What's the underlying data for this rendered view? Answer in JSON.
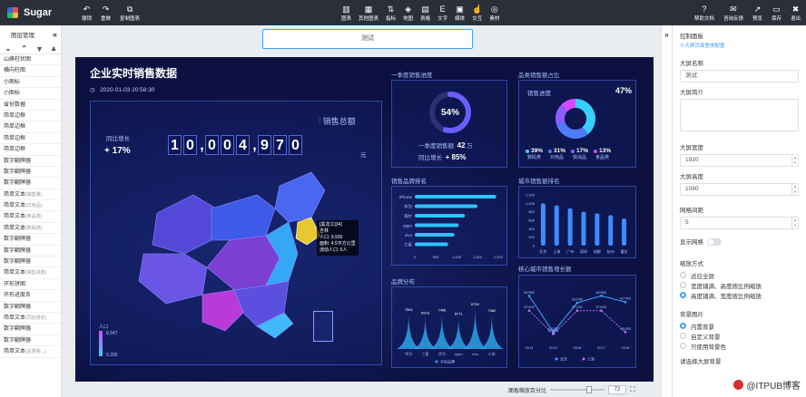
{
  "app": {
    "name": "Sugar"
  },
  "toolbar": {
    "left": [
      {
        "label": "撤销",
        "icon": "↶"
      },
      {
        "label": "重做",
        "icon": "↷"
      },
      {
        "label": "复制图表",
        "icon": "⧉"
      }
    ],
    "mid": [
      {
        "label": "图表",
        "icon": "▥"
      },
      {
        "label": "其他图表",
        "icon": "▦"
      },
      {
        "label": "指标",
        "icon": "⇅"
      },
      {
        "label": "地图",
        "icon": "◈"
      },
      {
        "label": "表格",
        "icon": "▤"
      },
      {
        "label": "文字",
        "icon": "E"
      },
      {
        "label": "媒体",
        "icon": "▣"
      },
      {
        "label": "交互",
        "icon": "☝"
      },
      {
        "label": "素材",
        "icon": "◎"
      }
    ],
    "right": [
      {
        "label": "帮助文档",
        "icon": "?"
      },
      {
        "label": "咨询反馈",
        "icon": "✉"
      },
      {
        "label": "预览",
        "icon": "↗"
      },
      {
        "label": "保存",
        "icon": "▭"
      },
      {
        "label": "退出",
        "icon": "✖"
      }
    ]
  },
  "layers": {
    "title": "图层管理",
    "items": [
      {
        "name": "山峰柱状图",
        "sub": ""
      },
      {
        "name": "横向柱图",
        "sub": ""
      },
      {
        "name": "小图标",
        "sub": ""
      },
      {
        "name": "小图标",
        "sub": ""
      },
      {
        "name": "省份数据",
        "sub": ""
      },
      {
        "name": "简单边框",
        "sub": ""
      },
      {
        "name": "简单边框",
        "sub": ""
      },
      {
        "name": "简单边框",
        "sub": ""
      },
      {
        "name": "简单边框",
        "sub": ""
      },
      {
        "name": "数字翻牌器",
        "sub": ""
      },
      {
        "name": "数字翻牌器",
        "sub": ""
      },
      {
        "name": "数字翻牌器",
        "sub": ""
      },
      {
        "name": "简单文本",
        "sub": "(销售量)"
      },
      {
        "name": "简单文本",
        "sub": "(日用品)"
      },
      {
        "name": "简单文本",
        "sub": "(食品类)"
      },
      {
        "name": "简单文本",
        "sub": "(数码类)"
      },
      {
        "name": "数字翻牌器",
        "sub": ""
      },
      {
        "name": "数字翻牌器",
        "sub": ""
      },
      {
        "name": "数字翻牌器",
        "sub": ""
      },
      {
        "name": "简单文本",
        "sub": "(销售进度)"
      },
      {
        "name": "环形饼图",
        "sub": ""
      },
      {
        "name": "环形进度条",
        "sub": ""
      },
      {
        "name": "数字翻牌器",
        "sub": ""
      },
      {
        "name": "简单文本",
        "sub": "(同比增长)"
      },
      {
        "name": "数字翻牌器",
        "sub": ""
      },
      {
        "name": "数字翻牌器",
        "sub": ""
      },
      {
        "name": "简单文本",
        "sub": "(品类销...)"
      }
    ]
  },
  "canvas": {
    "title_input": "测试",
    "footer_label": "面板缩放百分比",
    "zoom": "72"
  },
  "dashboard": {
    "title": "企业实时销售数据",
    "datetime": "2020-01-03 20:58:30",
    "yoy_label": "同比增长",
    "yoy_value": "+ 17%",
    "sales_total_label": "销售总额",
    "sales_total_digits": [
      "1",
      "0",
      ",",
      "0",
      "0",
      "4",
      ",",
      "9",
      "7",
      "0"
    ],
    "sales_total_unit": "元",
    "map_tooltip": [
      "[黑龙江]34]",
      "吉林",
      "人口: 9,926",
      "面积: 4.5平方公里",
      "流动人口: 6人"
    ],
    "map_legend_label": "人口",
    "map_legend_max": "8,947",
    "map_legend_min": "5,395",
    "q1": {
      "title": "一季度销售进度",
      "percent": 0.54,
      "percent_label": "54%",
      "sales_label": "一季度销售额",
      "sales_value": "42",
      "sales_unit": "万",
      "yoy_label": "同比增长",
      "yoy_value": "+ 85%"
    },
    "category_ratio": {
      "title": "品类销售额占比",
      "progress_label": "销售进度",
      "progress_value": "47%",
      "items": [
        {
          "pct": "39%",
          "name": "数码类",
          "color": "#36d0ff"
        },
        {
          "pct": "31%",
          "name": "日用品",
          "color": "#4f7bff"
        },
        {
          "pct": "17%",
          "name": "快消品",
          "color": "#8a5cff"
        },
        {
          "pct": "13%",
          "name": "食品类",
          "color": "#d04dff"
        }
      ]
    }
  },
  "chart_data": [
    {
      "type": "bar",
      "title": "销售品牌排名",
      "orientation": "horizontal",
      "categories": [
        "iPhone",
        "华为",
        "海尔",
        "oppo",
        "vivo",
        "三星"
      ],
      "values": [
        1950,
        1500,
        1200,
        1050,
        950,
        800
      ],
      "xlim": [
        0,
        2000
      ],
      "xticks": [
        "0",
        "500",
        "1,000",
        "1,500",
        "2,000"
      ]
    },
    {
      "type": "bar",
      "title": "城市销售额排名",
      "categories": [
        "北京",
        "上海",
        "广州",
        "深圳",
        "成都",
        "杭州",
        "重庆"
      ],
      "values": [
        1000,
        950,
        880,
        800,
        760,
        720,
        640
      ],
      "ylim": [
        0,
        1200
      ],
      "yticks": [
        "0",
        "200",
        "400",
        "600",
        "800",
        "1,000",
        "1,200"
      ]
    },
    {
      "type": "area",
      "title": "品牌分布",
      "categories": [
        "华为",
        "三星",
        "华为",
        "oppo",
        "vivo",
        "小米"
      ],
      "values": [
        7564,
        6916,
        7458,
        6771,
        8752,
        7382
      ],
      "legend": [
        "手机品牌"
      ]
    },
    {
      "type": "line",
      "title": "核心城市销售增长额",
      "x": [
        "2014",
        "2015",
        "2016",
        "2017",
        "2018"
      ],
      "series": [
        {
          "name": "北京",
          "values": [
            667882,
            431250,
            622789,
            667882,
            627469
          ]
        },
        {
          "name": "上海",
          "values": [
            571332,
            417882,
            571332,
            571332,
            431250
          ]
        }
      ]
    }
  ],
  "props": {
    "title": "控制面板",
    "subtitle": "⓪大屏页面整体配置",
    "screen_name_label": "大屏名称",
    "screen_name": "测试",
    "screen_desc_label": "大屏简介",
    "width_label": "大屏宽度",
    "width": "1920",
    "height_label": "大屏高度",
    "height": "1080",
    "grid_label": "网格间距",
    "grid": "5",
    "show_grid_label": "显示网格",
    "scale_label": "缩放方式",
    "scale_options": [
      {
        "label": "适应全屏",
        "on": false
      },
      {
        "label": "宽度铺满、高度按比例缩放",
        "on": false
      },
      {
        "label": "高度铺满、宽度按比例缩放",
        "on": true
      }
    ],
    "bg_label": "背景图片",
    "bg_options": [
      {
        "label": "内置背景",
        "on": true
      },
      {
        "label": "自定义背景",
        "on": false
      },
      {
        "label": "只使用背景色",
        "on": false
      }
    ],
    "choose_bg_label": "请选择大屏背景"
  },
  "watermark": "@ITPUB博客"
}
